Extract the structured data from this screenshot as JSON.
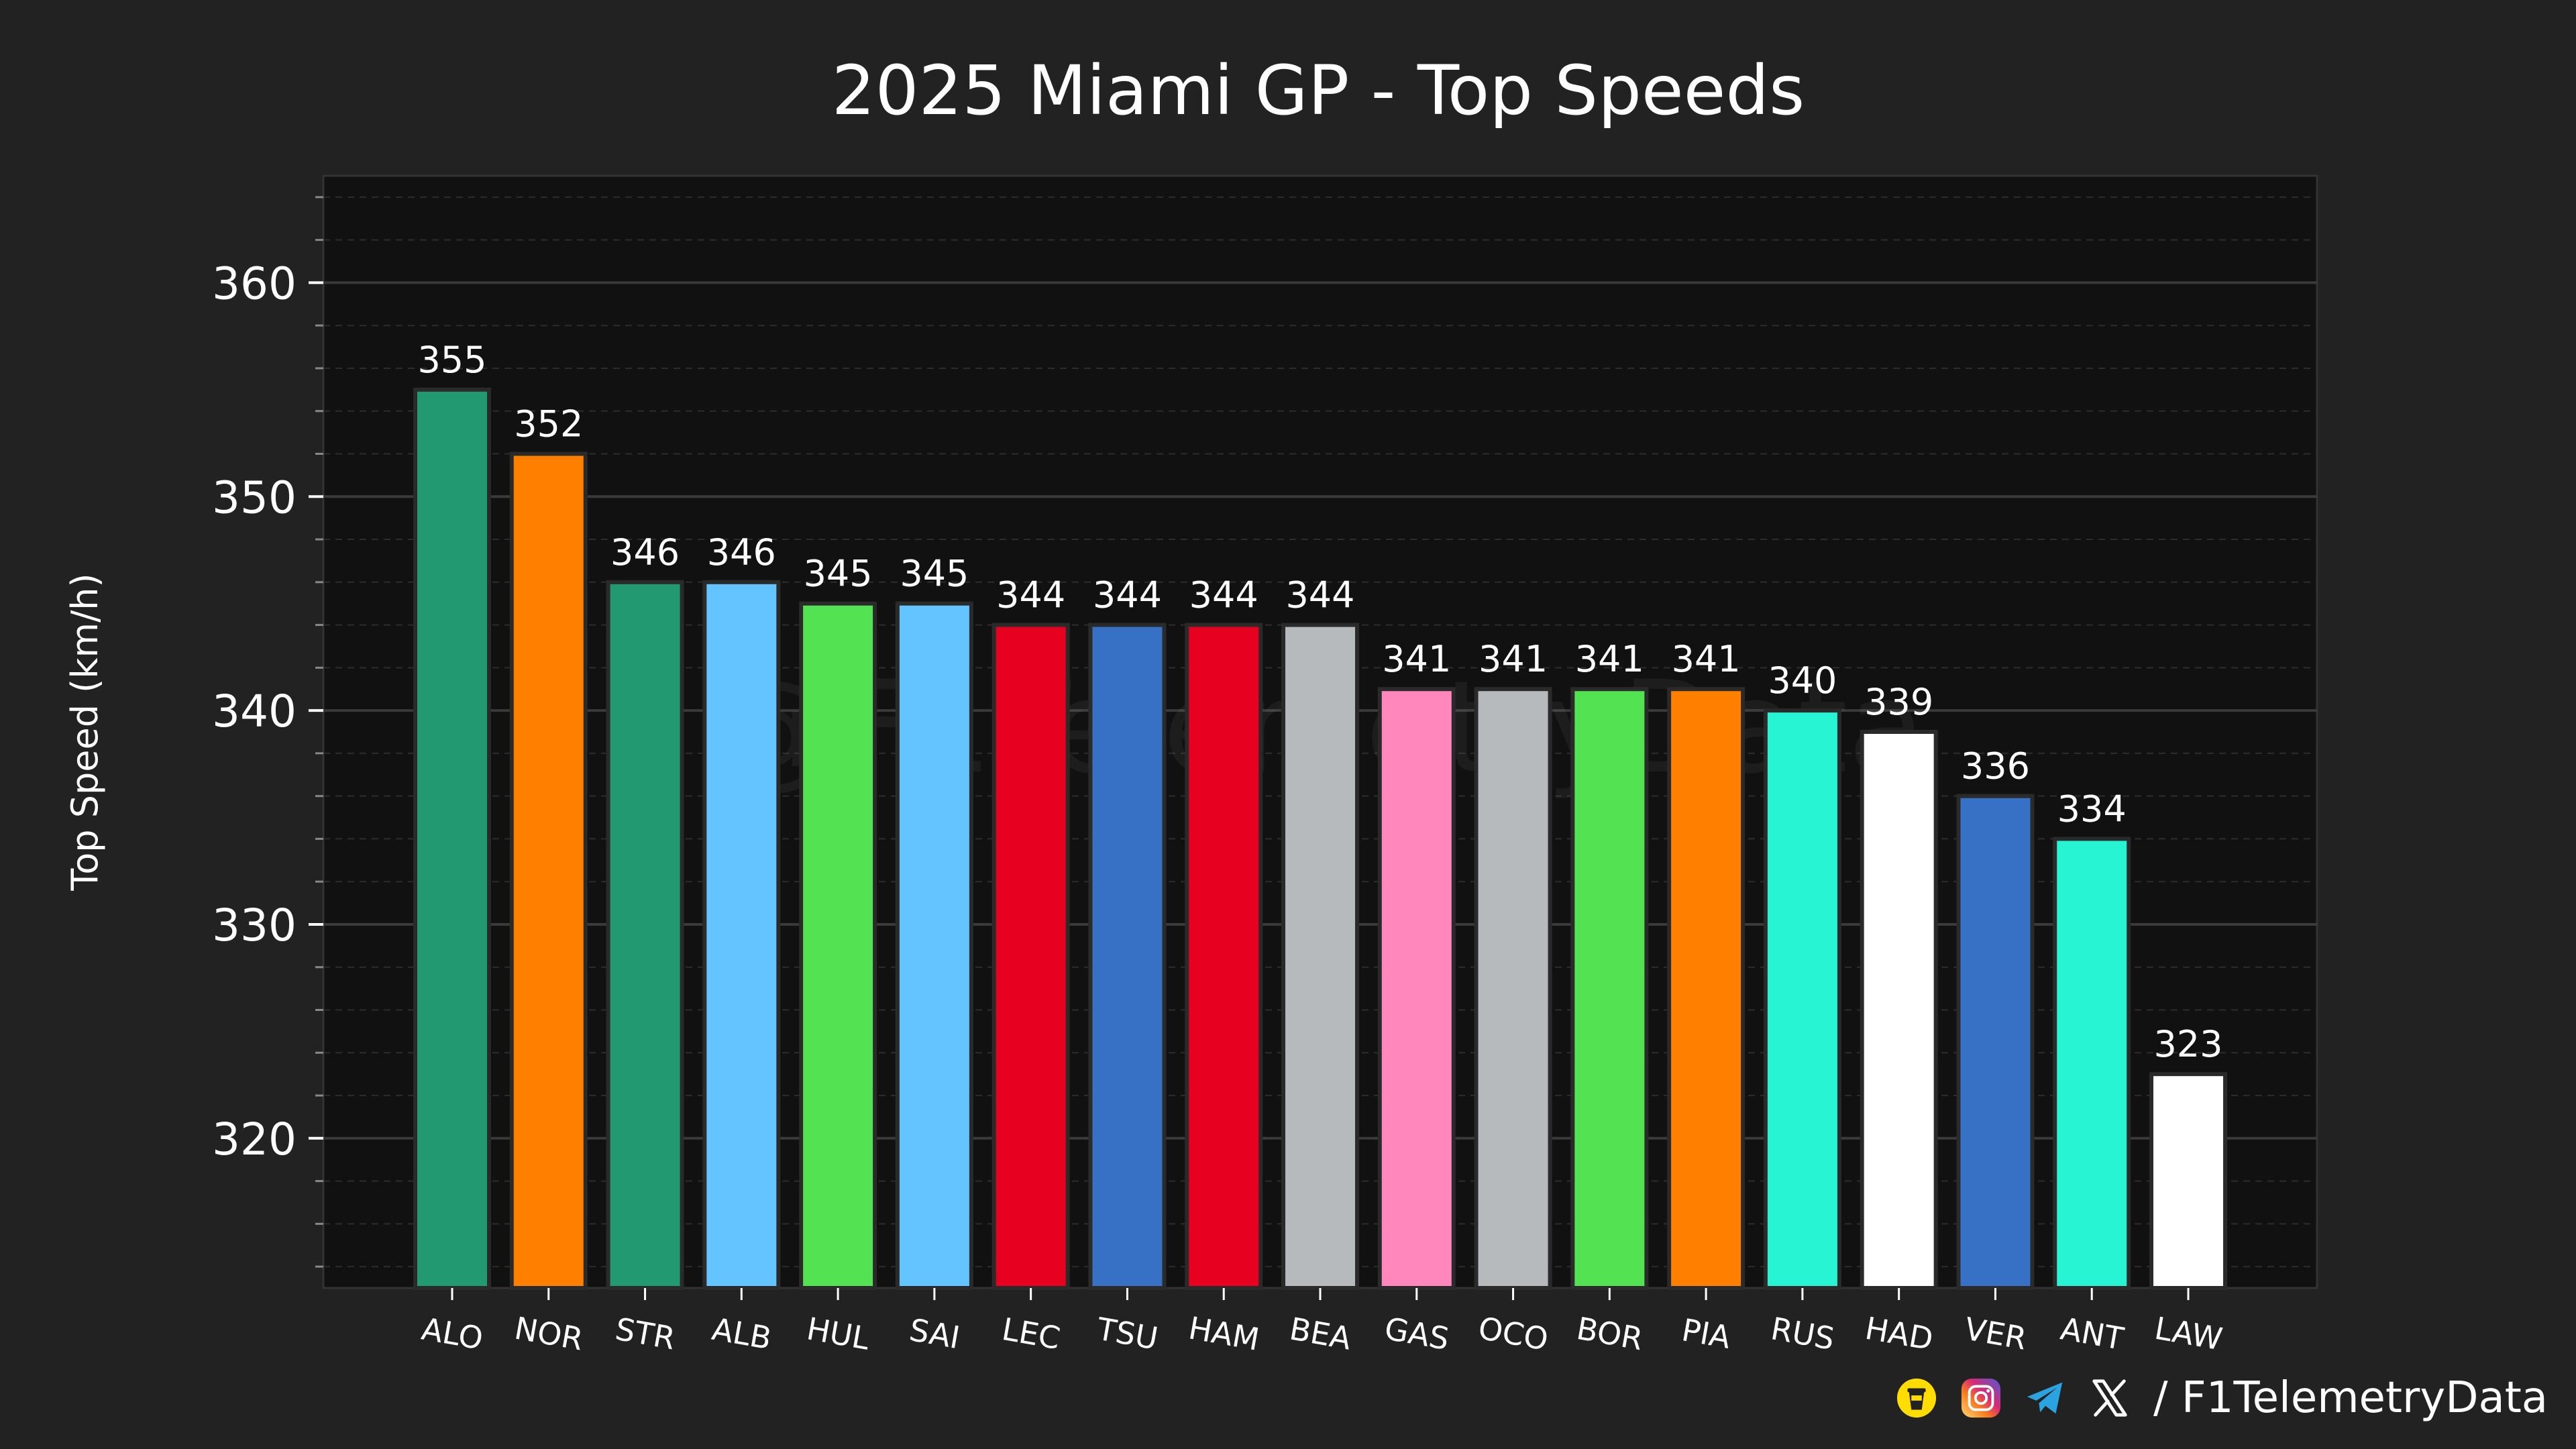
{
  "colors": {
    "background": "#222222",
    "plot_background": "#111111",
    "grid_major": "#3a3a3a",
    "grid_minor": "#2c2c2c",
    "text": "#ffffff"
  },
  "watermark": "@F1TelemetryData",
  "footer": {
    "handle": "/ F1TelemetryData",
    "icons": [
      "buymeacoffee-icon",
      "instagram-icon",
      "telegram-icon",
      "x-icon"
    ]
  },
  "chart_data": {
    "type": "bar",
    "title": "2025 Miami GP - Top Speeds",
    "xlabel": "",
    "ylabel": "Top Speed (km/h)",
    "ylim": [
      313,
      365
    ],
    "yticks": [
      320,
      330,
      340,
      350,
      360
    ],
    "grid": true,
    "categories": [
      "ALO",
      "NOR",
      "STR",
      "ALB",
      "HUL",
      "SAI",
      "LEC",
      "TSU",
      "HAM",
      "BEA",
      "GAS",
      "OCO",
      "BOR",
      "PIA",
      "RUS",
      "HAD",
      "VER",
      "ANT",
      "LAW"
    ],
    "values": [
      355,
      352,
      346,
      346,
      345,
      345,
      344,
      344,
      344,
      344,
      341,
      341,
      341,
      341,
      340,
      339,
      336,
      334,
      323
    ],
    "bar_colors": [
      "#229971",
      "#FF8000",
      "#229971",
      "#64C4FF",
      "#52E252",
      "#64C4FF",
      "#E80020",
      "#3671C6",
      "#E80020",
      "#B6BABD",
      "#FF87BC",
      "#B6BABD",
      "#52E252",
      "#FF8000",
      "#27F4D2",
      "#FFFFFF",
      "#3671C6",
      "#27F4D2",
      "#FFFFFF"
    ]
  }
}
